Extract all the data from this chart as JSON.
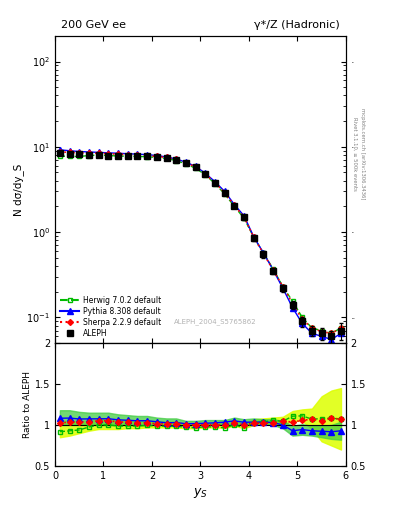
{
  "title_left": "200 GeV ee",
  "title_right": "γ*/Z (Hadronic)",
  "ylabel_main": "N dσ/dy_S",
  "ylabel_ratio": "Ratio to ALEPH",
  "xlabel": "y_S",
  "watermark": "ALEPH_2004_S5765862",
  "right_label_top": "Rivet 3.1.10, ≥ 500k events",
  "right_label_bot": "mcplots.cern.ch [arXiv:1306.3436]",
  "aleph_x": [
    0.1,
    0.3,
    0.5,
    0.7,
    0.9,
    1.1,
    1.3,
    1.5,
    1.7,
    1.9,
    2.1,
    2.3,
    2.5,
    2.7,
    2.9,
    3.1,
    3.3,
    3.5,
    3.7,
    3.9,
    4.1,
    4.3,
    4.5,
    4.7,
    4.9,
    5.1,
    5.3,
    5.5,
    5.7,
    5.9
  ],
  "aleph_y": [
    8.5,
    8.3,
    8.2,
    8.1,
    8.0,
    7.9,
    7.9,
    7.85,
    7.8,
    7.7,
    7.6,
    7.4,
    7.0,
    6.5,
    5.8,
    4.8,
    3.8,
    2.9,
    2.0,
    1.5,
    0.85,
    0.55,
    0.35,
    0.22,
    0.14,
    0.09,
    0.07,
    0.065,
    0.06,
    0.07
  ],
  "aleph_yerr": [
    0.3,
    0.2,
    0.2,
    0.2,
    0.2,
    0.2,
    0.2,
    0.2,
    0.2,
    0.2,
    0.2,
    0.2,
    0.2,
    0.2,
    0.2,
    0.2,
    0.15,
    0.15,
    0.1,
    0.1,
    0.06,
    0.05,
    0.03,
    0.02,
    0.015,
    0.012,
    0.01,
    0.01,
    0.01,
    0.015
  ],
  "herwig_x": [
    0.1,
    0.3,
    0.5,
    0.7,
    0.9,
    1.1,
    1.3,
    1.5,
    1.7,
    1.9,
    2.1,
    2.3,
    2.5,
    2.7,
    2.9,
    3.1,
    3.3,
    3.5,
    3.7,
    3.9,
    4.1,
    4.3,
    4.5,
    4.7,
    4.9,
    5.1,
    5.3,
    5.5,
    5.7,
    5.9
  ],
  "herwig_y": [
    7.8,
    7.7,
    7.7,
    7.9,
    8.0,
    7.9,
    7.8,
    7.75,
    7.7,
    7.65,
    7.5,
    7.3,
    6.9,
    6.3,
    5.6,
    4.7,
    3.7,
    2.8,
    2.0,
    1.45,
    0.87,
    0.57,
    0.37,
    0.23,
    0.155,
    0.1,
    0.075,
    0.07,
    0.065,
    0.075
  ],
  "pythia_x": [
    0.1,
    0.3,
    0.5,
    0.7,
    0.9,
    1.1,
    1.3,
    1.5,
    1.7,
    1.9,
    2.1,
    2.3,
    2.5,
    2.7,
    2.9,
    3.1,
    3.3,
    3.5,
    3.7,
    3.9,
    4.1,
    4.3,
    4.5,
    4.7,
    4.9,
    5.1,
    5.3,
    5.5,
    5.7,
    5.9
  ],
  "pythia_y": [
    9.2,
    9.0,
    8.8,
    8.7,
    8.6,
    8.5,
    8.4,
    8.3,
    8.2,
    8.1,
    7.9,
    7.6,
    7.2,
    6.6,
    5.9,
    4.9,
    3.9,
    3.0,
    2.1,
    1.55,
    0.88,
    0.57,
    0.36,
    0.22,
    0.13,
    0.085,
    0.065,
    0.06,
    0.055,
    0.065
  ],
  "sherpa_x": [
    0.1,
    0.3,
    0.5,
    0.7,
    0.9,
    1.1,
    1.3,
    1.5,
    1.7,
    1.9,
    2.1,
    2.3,
    2.5,
    2.7,
    2.9,
    3.1,
    3.3,
    3.5,
    3.7,
    3.9,
    4.1,
    4.3,
    4.5,
    4.7,
    4.9,
    5.1,
    5.3,
    5.5,
    5.7,
    5.9
  ],
  "sherpa_y": [
    8.7,
    8.6,
    8.5,
    8.4,
    8.4,
    8.3,
    8.2,
    8.1,
    8.0,
    7.9,
    7.7,
    7.5,
    7.1,
    6.5,
    5.8,
    4.8,
    3.8,
    2.9,
    2.05,
    1.5,
    0.87,
    0.56,
    0.36,
    0.23,
    0.145,
    0.095,
    0.075,
    0.068,
    0.065,
    0.075
  ],
  "aleph_color": "#000000",
  "herwig_color": "#00bb00",
  "pythia_color": "#0000ff",
  "sherpa_color": "#ff0000",
  "xlim": [
    0,
    6
  ],
  "ylim_main": [
    0.05,
    200
  ],
  "ylim_ratio": [
    0.5,
    2.0
  ],
  "herwig_ratio": [
    0.918,
    0.928,
    0.939,
    0.975,
    1.0,
    1.0,
    0.987,
    0.987,
    0.987,
    0.994,
    0.987,
    0.986,
    0.986,
    0.969,
    0.966,
    0.979,
    0.974,
    0.966,
    1.0,
    0.967,
    1.024,
    1.036,
    1.057,
    1.045,
    1.107,
    1.111,
    1.071,
    1.077,
    1.083,
    1.071
  ],
  "pythia_ratio": [
    1.082,
    1.084,
    1.073,
    1.074,
    1.075,
    1.076,
    1.063,
    1.057,
    1.051,
    1.052,
    1.039,
    1.027,
    1.029,
    1.015,
    1.017,
    1.021,
    1.026,
    1.034,
    1.05,
    1.033,
    1.035,
    1.036,
    1.029,
    1.0,
    0.929,
    0.944,
    0.929,
    0.923,
    0.917,
    0.929
  ],
  "sherpa_ratio": [
    1.024,
    1.036,
    1.037,
    1.037,
    1.05,
    1.051,
    1.038,
    1.032,
    1.026,
    1.026,
    1.013,
    1.014,
    1.014,
    1.0,
    1.0,
    1.0,
    1.0,
    1.0,
    1.025,
    1.0,
    1.024,
    1.018,
    1.029,
    1.045,
    1.036,
    1.056,
    1.071,
    1.046,
    1.083,
    1.071
  ],
  "hw_band_lo": [
    0.85,
    0.87,
    0.9,
    0.93,
    0.95,
    0.95,
    0.95,
    0.96,
    0.96,
    0.97,
    0.97,
    0.97,
    0.97,
    0.96,
    0.96,
    0.97,
    0.97,
    0.965,
    0.99,
    0.96,
    1.0,
    1.01,
    1.03,
    1.0,
    1.05,
    1.05,
    0.95,
    0.8,
    0.75,
    0.7
  ],
  "hw_band_hi": [
    1.05,
    1.05,
    1.05,
    1.05,
    1.07,
    1.07,
    1.05,
    1.05,
    1.05,
    1.05,
    1.04,
    1.04,
    1.04,
    1.02,
    1.02,
    1.02,
    1.02,
    1.02,
    1.04,
    1.02,
    1.07,
    1.08,
    1.09,
    1.1,
    1.17,
    1.19,
    1.2,
    1.35,
    1.42,
    1.45
  ],
  "py_band_lo": [
    1.0,
    1.0,
    1.0,
    1.0,
    1.0,
    1.0,
    1.0,
    1.0,
    1.0,
    1.0,
    1.0,
    0.99,
    0.99,
    0.99,
    1.0,
    1.0,
    1.0,
    1.01,
    1.01,
    1.0,
    1.0,
    1.01,
    1.0,
    0.96,
    0.87,
    0.88,
    0.87,
    0.85,
    0.83,
    0.82
  ],
  "py_band_hi": [
    1.18,
    1.18,
    1.16,
    1.15,
    1.15,
    1.15,
    1.13,
    1.12,
    1.11,
    1.11,
    1.09,
    1.08,
    1.08,
    1.05,
    1.05,
    1.06,
    1.06,
    1.06,
    1.09,
    1.07,
    1.08,
    1.07,
    1.07,
    1.05,
    0.99,
    1.01,
    0.99,
    0.99,
    1.0,
    1.04
  ]
}
